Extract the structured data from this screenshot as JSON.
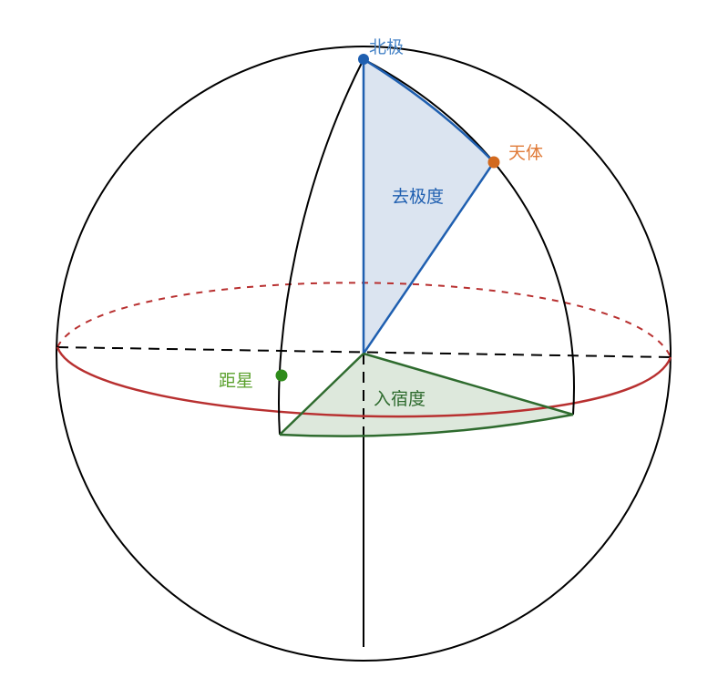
{
  "diagram": {
    "labels": {
      "north_pole": "北极",
      "celestial_body": "天体",
      "polar_distance": "去极度",
      "determinative_star": "距星",
      "lodge_entry_degree": "入宿度"
    },
    "colors": {
      "outline": "#000000",
      "equator": "#b83030",
      "polar_distance": "#1f5fb0",
      "polar_fill": "#dbe4f0",
      "lodge": "#2e6b2e",
      "lodge_fill": "#dde8dc",
      "north_pole_label": "#4a86c8",
      "body_point": "#d2691e",
      "body_label": "#e07b39",
      "star_point": "#2e8b1a",
      "star_label": "#5aa02c",
      "lodge_label": "#2e6b2e"
    }
  }
}
